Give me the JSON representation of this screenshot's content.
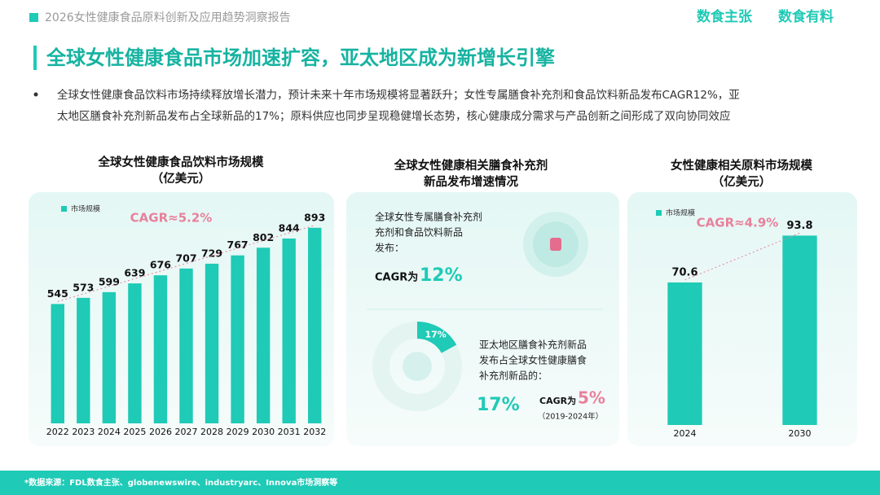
{
  "header": {
    "report_title": "2026女性健康食品原料创新及应用趋势洞察报告",
    "brands": [
      "数食主张",
      "数食有料"
    ]
  },
  "headline": "全球女性健康食品市场加速扩容，亚太地区成为新增长引擎",
  "bullet_lines": [
    "全球女性健康食品饮料市场持续释放增长潜力，预计未来十年市场规模将显著跃升；女性专属膳食补充剂和食品饮料新品发布CAGR12%，亚",
    "太地区膳食补充剂新品发布占全球新品的17%；原料供应也同步呈现稳健增长态势，核心健康成分需求与产品创新之间形成了双向协同效应"
  ],
  "chart_data": [
    {
      "type": "bar",
      "title_lines": [
        "全球女性健康食品饮料市场规模",
        "（亿美元）"
      ],
      "annotation": "CAGR≈5.2%",
      "categories": [
        "2022",
        "2023",
        "2024",
        "2025",
        "2026",
        "2027",
        "2028",
        "2029",
        "2030",
        "2031",
        "2032"
      ],
      "series": [
        {
          "name": "市场规模",
          "color": "#1fcab6",
          "values": [
            545,
            573,
            599,
            639,
            676,
            707,
            729,
            767,
            802,
            844,
            893
          ]
        }
      ],
      "ylim": [
        0,
        1000
      ]
    },
    {
      "type": "infographic",
      "title_lines": [
        "全球女性健康相关膳食补充剂",
        "新品发布增速情况"
      ],
      "block1_lines": [
        "全球女性专属膳食补充剂",
        "充剂和食品饮料新品",
        "发布："
      ],
      "block1_cagr_label": "CAGR为",
      "block1_cagr_value": "12%",
      "block2_lines": [
        "亚太地区膳食补充剂新品",
        "发布占全球女性健康膳食",
        "补充剂新品的："
      ],
      "share": {
        "value": 17,
        "label": "17%"
      },
      "block2_cagr_label": "CAGR为",
      "block2_cagr_value": "5%",
      "block2_period": "（2019-2024年）"
    },
    {
      "type": "bar",
      "title_lines": [
        "女性健康相关原料市场规模",
        "（亿美元）"
      ],
      "annotation": "CAGR≈4.9%",
      "categories": [
        "2024",
        "2030"
      ],
      "series": [
        {
          "name": "市场规模",
          "color": "#1fcab6",
          "values": [
            70.6,
            93.8
          ]
        }
      ],
      "ylim": [
        0,
        100
      ]
    }
  ],
  "footer": "*数据来源：FDL数食主张、globenewswire、industryarc、Innova市场洞察等"
}
